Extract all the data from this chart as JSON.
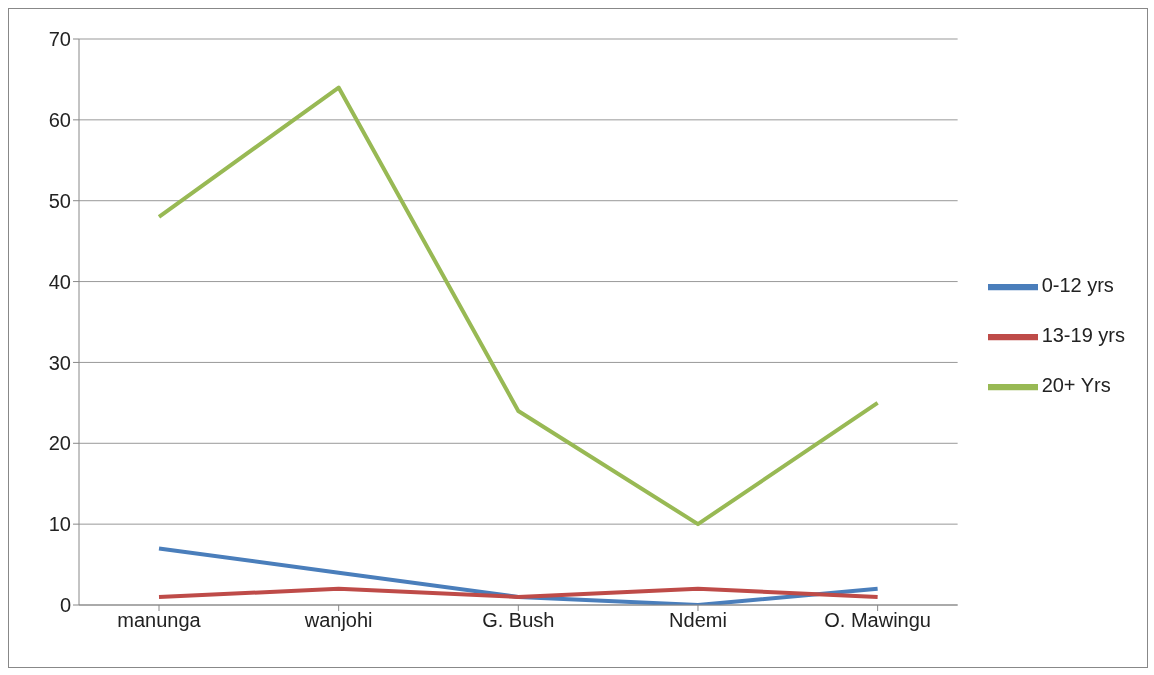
{
  "chart_data": {
    "type": "line",
    "categories": [
      "manunga",
      "wanjohi",
      "G. Bush",
      "Ndemi",
      "O. Mawingu"
    ],
    "series": [
      {
        "name": "0-12 yrs",
        "color": "#4a7ebb",
        "values": [
          7,
          4,
          1,
          0,
          2
        ]
      },
      {
        "name": "13-19 yrs",
        "color": "#be4b48",
        "values": [
          1,
          2,
          1,
          2,
          1
        ]
      },
      {
        "name": "20+ Yrs",
        "color": "#98b954",
        "values": [
          48,
          64,
          24,
          10,
          25
        ]
      }
    ],
    "ylim": [
      0,
      70
    ],
    "yticks": [
      0,
      10,
      20,
      30,
      40,
      50,
      60,
      70
    ],
    "grid": "y",
    "legend": "right",
    "marker": "none",
    "line_style": "solid"
  }
}
